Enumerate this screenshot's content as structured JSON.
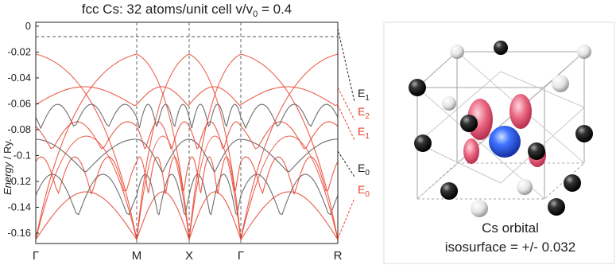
{
  "chart_data": {
    "type": "band",
    "title": {
      "main": "fcc Cs: 32 atoms/unit cell v/v",
      "sub": "0",
      "rest": " = 0.4"
    },
    "y_label": {
      "italic": "Energy",
      "rest": " / Ry."
    },
    "categories": [
      "Γ",
      "M",
      "X",
      "Γ",
      "R"
    ],
    "ylim": [
      -0.168,
      0.003
    ],
    "yticks": [
      0,
      -0.02,
      -0.04,
      -0.06,
      -0.08,
      -0.1,
      -0.12,
      -0.14,
      -0.16
    ],
    "annotations": [
      {
        "text": "E",
        "sub": "1",
        "color": "#222222"
      },
      {
        "text": "E",
        "sub": "2",
        "color": "#e8412c"
      },
      {
        "text": "E",
        "sub": "1",
        "color": "#e8412c"
      },
      {
        "text": "E",
        "sub": "0",
        "color": "#222222"
      },
      {
        "text": "E",
        "sub": "0",
        "color": "#e8412c"
      }
    ],
    "panel": {
      "caption_1": "Cs orbital",
      "caption_2": "isosurface = +/- 0.032"
    }
  }
}
